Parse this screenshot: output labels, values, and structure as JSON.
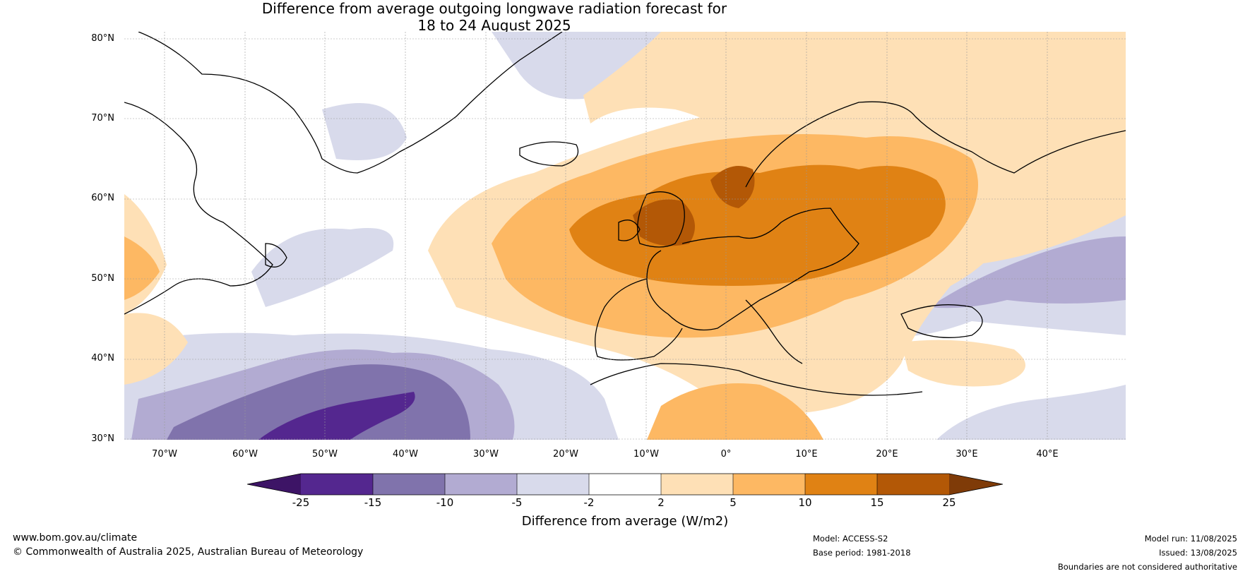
{
  "header": {
    "title_line1": "Difference from average outgoing longwave radiation forecast for",
    "title_line2": "18 to 24 August 2025"
  },
  "map": {
    "lat_labels": [
      "80°N",
      "70°N",
      "60°N",
      "50°N",
      "40°N",
      "30°N"
    ],
    "lon_labels": [
      "70°W",
      "60°W",
      "50°W",
      "40°W",
      "30°W",
      "20°W",
      "10°W",
      "0°",
      "10°E",
      "20°E",
      "30°E",
      "40°E"
    ],
    "extent": {
      "lon": [
        -75,
        50
      ],
      "lat": [
        30,
        81
      ]
    }
  },
  "colorbar": {
    "ticks": [
      "-25",
      "-15",
      "-10",
      "-5",
      "-2",
      "2",
      "5",
      "10",
      "15",
      "25"
    ],
    "colors": [
      "#3d1466",
      "#54278f",
      "#8073ac",
      "#b2abd2",
      "#d8daeb",
      "#ffffff",
      "#fee0b6",
      "#fdb863",
      "#e08214",
      "#b35806",
      "#7f3b08"
    ],
    "label": "Difference from average (W/m2)"
  },
  "footer": {
    "website": "www.bom.gov.au/climate",
    "copyright": "© Commonwealth of Australia 2025, Australian Bureau of Meteorology",
    "model": "Model: ACCESS-S2",
    "base_period": "Base period: 1981-2018",
    "model_run": "Model run: 11/08/2025",
    "issued": "Issued: 13/08/2025",
    "disclaimer": "Boundaries are not considered authoritative"
  }
}
